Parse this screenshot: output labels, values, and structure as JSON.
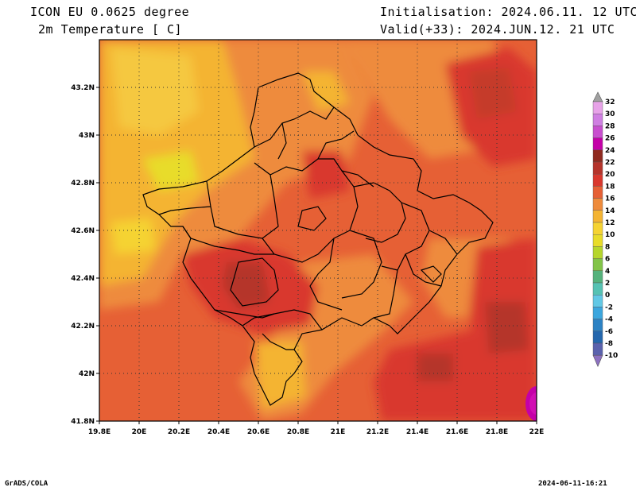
{
  "header": {
    "model": "ICON EU 0.0625 degree",
    "variable": "2m Temperature [ C]",
    "init": "Initialisation: 2024.06.11. 12 UTC",
    "valid": "Valid(+33): 2024.JUN.12. 21 UTC"
  },
  "footer": {
    "software": "GrADS/COLA",
    "timestamp": "2024-06-11-16:21"
  },
  "map": {
    "lon_range": [
      19.8,
      22.0
    ],
    "lat_range": [
      41.8,
      43.4
    ],
    "lon_ticks": [
      "19.8E",
      "20E",
      "20.2E",
      "20.4E",
      "20.6E",
      "20.8E",
      "21E",
      "21.2E",
      "21.4E",
      "21.6E",
      "21.8E",
      "22E"
    ],
    "lat_ticks": [
      "41.8N",
      "42N",
      "42.2N",
      "42.4N",
      "42.6N",
      "42.8N",
      "43N",
      "43.2N"
    ],
    "grid": true,
    "grid_style": "dotted"
  },
  "colorbar": {
    "levels": [
      "32",
      "30",
      "28",
      "26",
      "24",
      "22",
      "20",
      "18",
      "16",
      "14",
      "12",
      "10",
      "8",
      "6",
      "4",
      "2",
      "0",
      "-2",
      "-4",
      "-6",
      "-8",
      "-10"
    ],
    "colors": [
      "#e7a3e8",
      "#cf7fe2",
      "#c84fcf",
      "#c400a8",
      "#8f2a1f",
      "#b5342b",
      "#d9382e",
      "#e66035",
      "#ee8b3c",
      "#f4b433",
      "#f5d333",
      "#e8dc2a",
      "#b6d62c",
      "#82c448",
      "#55b27c",
      "#56c2b3",
      "#62c8e5",
      "#3ba6de",
      "#2c82c4",
      "#2467ad",
      "#5a62ad",
      "#8c70c0"
    ]
  }
}
